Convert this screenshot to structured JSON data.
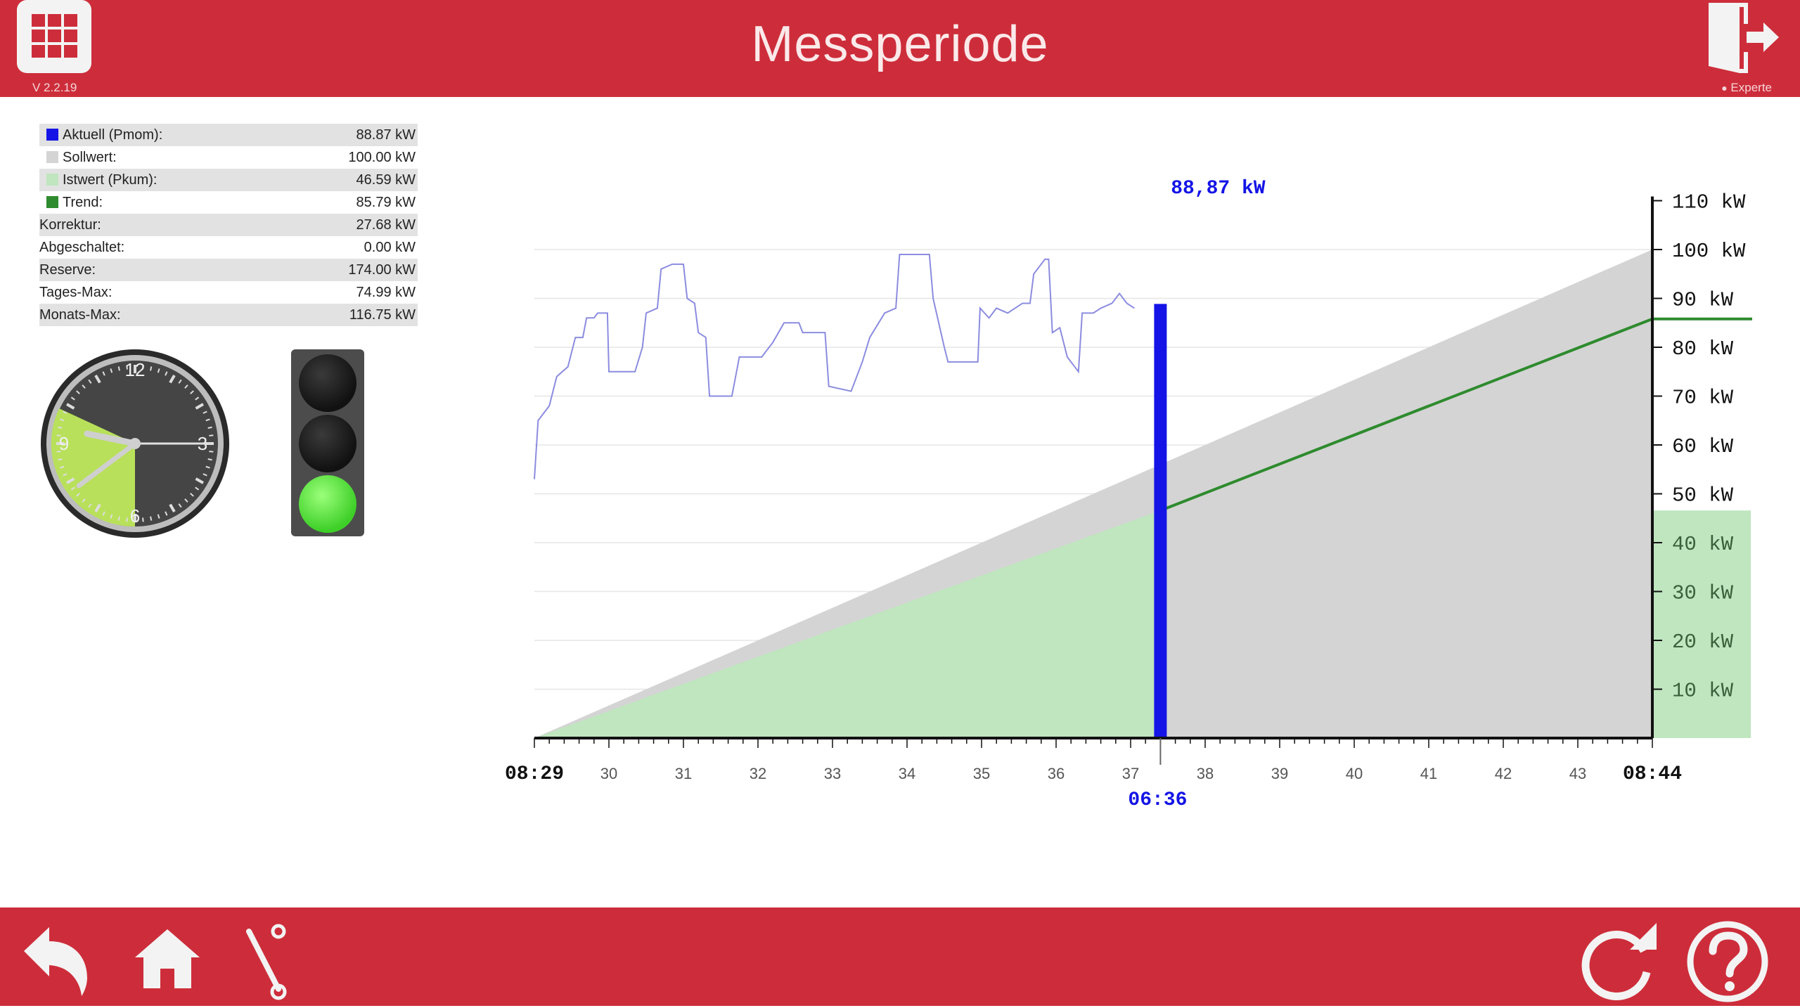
{
  "header": {
    "title": "Messperiode",
    "version": "V 2.2.19",
    "user_label": "Experte"
  },
  "values_table": [
    {
      "label": "Aktuell (Pmom):",
      "value": "88.87 kW",
      "swatch": "#1414e6"
    },
    {
      "label": "Sollwert:",
      "value": "100.00 kW",
      "swatch": "#d4d4d4"
    },
    {
      "label": "Istwert (Pkum):",
      "value": "46.59 kW",
      "swatch": "#bfe6bf"
    },
    {
      "label": "Trend:",
      "value": "85.79 kW",
      "swatch": "#2e8b2e"
    },
    {
      "label": "Korrektur:",
      "value": "27.68 kW",
      "swatch": ""
    },
    {
      "label": "Abgeschaltet:",
      "value": "0.00 kW",
      "swatch": ""
    },
    {
      "label": "Reserve:",
      "value": "174.00 kW",
      "swatch": ""
    },
    {
      "label": "Tages-Max:",
      "value": "74.99 kW",
      "swatch": ""
    },
    {
      "label": "Monats-Max:",
      "value": "116.75 kW",
      "swatch": ""
    }
  ],
  "clock": {
    "numerals": [
      "12",
      "3",
      "6",
      "9"
    ],
    "highlight_color": "#b8e05a"
  },
  "traffic_light": {
    "state": "green"
  },
  "colors": {
    "brand": "#cd2d3a",
    "current": "#1414e6",
    "target": "#d4d4d4",
    "actual": "#bfe6bf",
    "trend": "#2e8b2e",
    "history_line": "#8c8ce0"
  },
  "chart_data": {
    "type": "area",
    "x_start_label": "08:29",
    "x_end_label": "08:44",
    "x_tick_labels": [
      "30",
      "31",
      "32",
      "33",
      "34",
      "35",
      "36",
      "37",
      "38",
      "39",
      "40",
      "41",
      "42",
      "43"
    ],
    "x_range": [
      0,
      15
    ],
    "current_time_label": "06:36",
    "current_x": 8.4,
    "current_value_label": "88,87 kW",
    "current_value": 88.87,
    "y_ticks": [
      10,
      20,
      30,
      40,
      50,
      60,
      70,
      80,
      90,
      100,
      110
    ],
    "y_unit": "kW",
    "ylim": [
      0,
      110
    ],
    "target_end": 100,
    "actual_end": 46.59,
    "trend_end": 85.79,
    "history": [
      [
        0,
        53
      ],
      [
        0.05,
        65
      ],
      [
        0.2,
        68
      ],
      [
        0.3,
        74
      ],
      [
        0.45,
        76
      ],
      [
        0.55,
        82
      ],
      [
        0.65,
        82
      ],
      [
        0.7,
        86
      ],
      [
        0.8,
        86
      ],
      [
        0.85,
        87
      ],
      [
        0.98,
        87
      ],
      [
        1.0,
        75
      ],
      [
        1.35,
        75
      ],
      [
        1.45,
        80
      ],
      [
        1.5,
        87
      ],
      [
        1.65,
        88
      ],
      [
        1.7,
        96
      ],
      [
        1.85,
        97
      ],
      [
        2.0,
        97
      ],
      [
        2.05,
        90
      ],
      [
        2.15,
        89
      ],
      [
        2.2,
        83
      ],
      [
        2.3,
        82
      ],
      [
        2.35,
        70
      ],
      [
        2.65,
        70
      ],
      [
        2.75,
        78
      ],
      [
        3.05,
        78
      ],
      [
        3.15,
        80
      ],
      [
        3.2,
        81
      ],
      [
        3.35,
        85
      ],
      [
        3.55,
        85
      ],
      [
        3.6,
        83
      ],
      [
        3.9,
        83
      ],
      [
        3.95,
        72
      ],
      [
        4.25,
        71
      ],
      [
        4.4,
        77
      ],
      [
        4.5,
        82
      ],
      [
        4.7,
        87
      ],
      [
        4.85,
        88
      ],
      [
        4.9,
        99
      ],
      [
        5.3,
        99
      ],
      [
        5.35,
        90
      ],
      [
        5.5,
        80
      ],
      [
        5.55,
        77
      ],
      [
        5.95,
        77
      ],
      [
        5.98,
        88
      ],
      [
        6.1,
        86
      ],
      [
        6.2,
        88
      ],
      [
        6.35,
        87
      ],
      [
        6.55,
        89
      ],
      [
        6.65,
        89
      ],
      [
        6.7,
        95
      ],
      [
        6.85,
        98
      ],
      [
        6.9,
        98
      ],
      [
        6.95,
        83
      ],
      [
        7.05,
        84
      ],
      [
        7.15,
        78
      ],
      [
        7.25,
        76
      ],
      [
        7.3,
        75
      ],
      [
        7.35,
        87
      ],
      [
        7.5,
        87
      ],
      [
        7.6,
        88
      ],
      [
        7.75,
        89
      ],
      [
        7.85,
        91
      ],
      [
        7.95,
        89
      ],
      [
        8.05,
        88
      ]
    ]
  }
}
